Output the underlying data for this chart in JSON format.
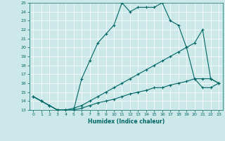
{
  "xlabel": "Humidex (Indice chaleur)",
  "background_color": "#cce8e8",
  "grid_color": "#ffffff",
  "line_color": "#006666",
  "xlim": [
    -0.5,
    23.5
  ],
  "ylim": [
    13,
    25
  ],
  "xticks": [
    0,
    1,
    2,
    3,
    4,
    5,
    6,
    7,
    8,
    9,
    10,
    11,
    12,
    13,
    14,
    15,
    16,
    17,
    18,
    19,
    20,
    21,
    22,
    23
  ],
  "yticks": [
    13,
    14,
    15,
    16,
    17,
    18,
    19,
    20,
    21,
    22,
    23,
    24,
    25
  ],
  "line1_x": [
    0,
    1,
    2,
    3,
    4,
    5,
    6,
    7,
    8,
    9,
    10,
    11,
    12,
    13,
    14,
    15,
    16,
    17,
    18,
    19,
    20,
    21,
    22,
    23
  ],
  "line1_y": [
    14.5,
    14.0,
    13.5,
    13.0,
    13.0,
    13.0,
    16.5,
    18.5,
    20.5,
    21.5,
    22.5,
    25.0,
    24.0,
    24.5,
    24.5,
    24.5,
    25.0,
    23.0,
    22.5,
    20.0,
    16.5,
    16.5,
    16.5,
    16.0
  ],
  "line2_x": [
    0,
    1,
    2,
    3,
    4,
    5,
    6,
    7,
    8,
    9,
    10,
    11,
    12,
    13,
    14,
    15,
    16,
    17,
    18,
    19,
    20,
    21,
    22,
    23
  ],
  "line2_y": [
    14.5,
    14.0,
    13.5,
    13.0,
    13.0,
    13.2,
    13.5,
    14.0,
    14.5,
    15.0,
    15.5,
    16.0,
    16.5,
    17.0,
    17.5,
    18.0,
    18.5,
    19.0,
    19.5,
    20.0,
    20.5,
    22.0,
    16.5,
    16.0
  ],
  "line3_x": [
    0,
    1,
    2,
    3,
    4,
    5,
    6,
    7,
    8,
    9,
    10,
    11,
    12,
    13,
    14,
    15,
    16,
    17,
    18,
    19,
    20,
    21,
    22,
    23
  ],
  "line3_y": [
    14.5,
    14.0,
    13.5,
    13.0,
    13.0,
    13.0,
    13.2,
    13.5,
    13.8,
    14.0,
    14.2,
    14.5,
    14.8,
    15.0,
    15.2,
    15.5,
    15.5,
    15.8,
    16.0,
    16.2,
    16.5,
    15.5,
    15.5,
    16.0
  ]
}
